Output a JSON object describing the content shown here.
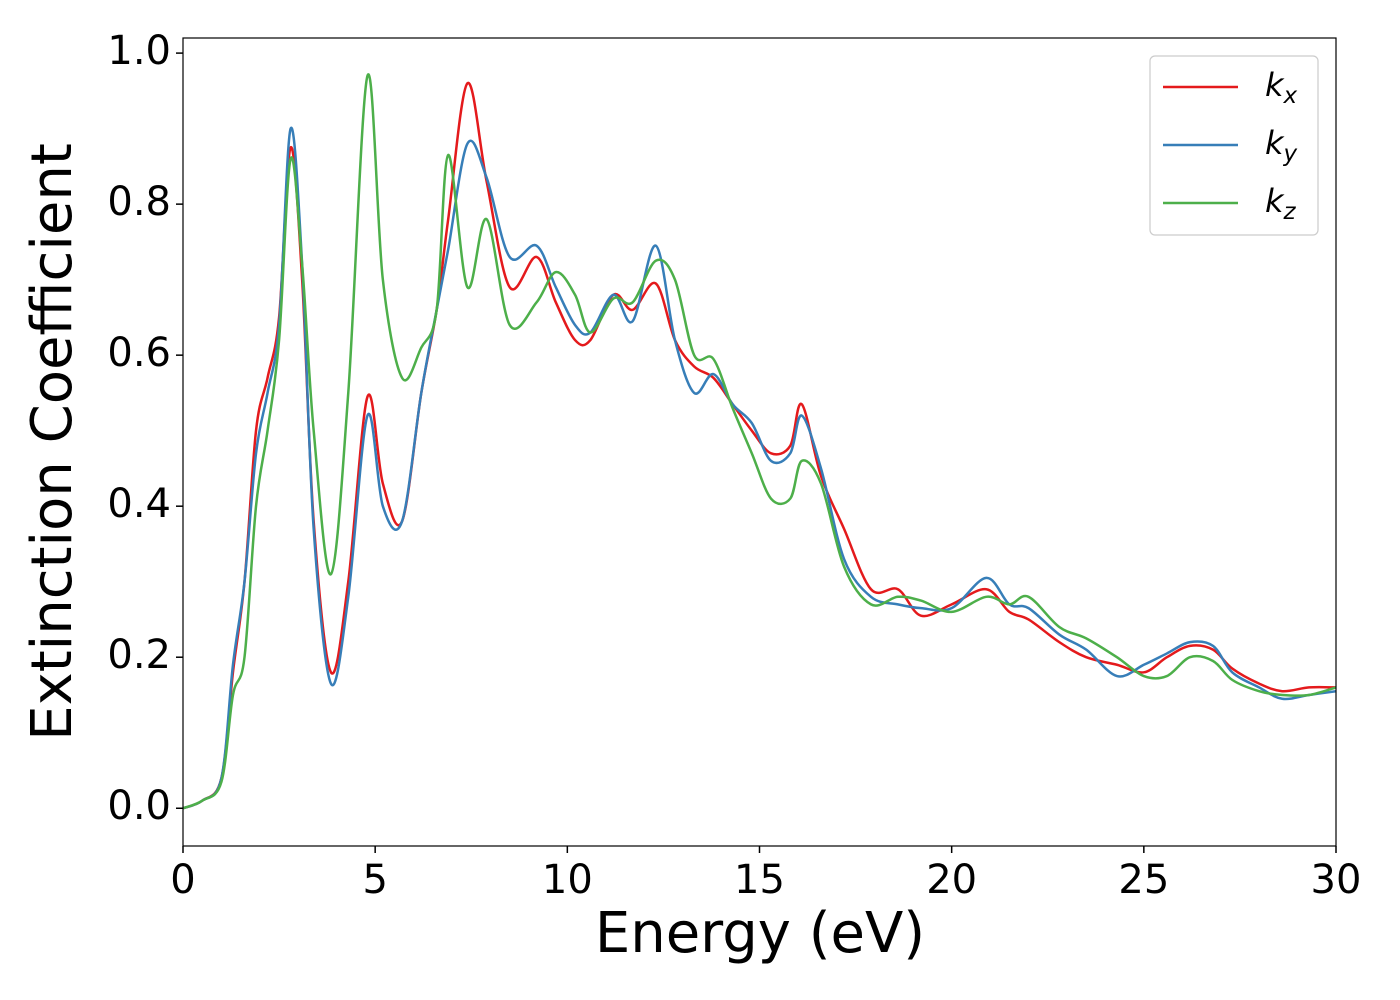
{
  "chart_data": {
    "type": "line",
    "xlabel": "Energy (eV)",
    "ylabel": "Extinction Coefficient",
    "x": [
      0,
      0.5,
      1,
      1.3,
      1.6,
      1.9,
      2.2,
      2.5,
      2.8,
      3.1,
      3.4,
      3.85,
      4.3,
      4.8,
      5.2,
      5.7,
      6.2,
      6.6,
      6.9,
      7.4,
      7.9,
      8.5,
      9.2,
      9.7,
      10.2,
      10.6,
      11.2,
      11.7,
      12.3,
      12.8,
      13.3,
      13.8,
      14.3,
      14.8,
      15.3,
      15.8,
      16.1,
      16.6,
      17.2,
      17.9,
      18.6,
      19.2,
      20,
      20.9,
      21.5,
      22,
      22.8,
      23.5,
      24.3,
      25,
      25.6,
      26.2,
      26.8,
      27.3,
      28,
      28.6,
      29.3,
      30
    ],
    "series": [
      {
        "name": "kx",
        "color": "#e41a1c",
        "values": [
          0,
          0.01,
          0.04,
          0.18,
          0.3,
          0.5,
          0.57,
          0.65,
          0.875,
          0.7,
          0.38,
          0.18,
          0.3,
          0.545,
          0.43,
          0.38,
          0.55,
          0.66,
          0.78,
          0.96,
          0.83,
          0.69,
          0.73,
          0.67,
          0.62,
          0.62,
          0.68,
          0.66,
          0.695,
          0.62,
          0.585,
          0.57,
          0.535,
          0.5,
          0.47,
          0.48,
          0.535,
          0.44,
          0.37,
          0.29,
          0.29,
          0.255,
          0.27,
          0.29,
          0.26,
          0.25,
          0.22,
          0.2,
          0.19,
          0.18,
          0.2,
          0.215,
          0.21,
          0.185,
          0.165,
          0.155,
          0.16,
          0.16
        ]
      },
      {
        "name": "ky",
        "color": "#377eb8",
        "values": [
          0,
          0.01,
          0.04,
          0.19,
          0.3,
          0.47,
          0.55,
          0.64,
          0.9,
          0.72,
          0.37,
          0.165,
          0.28,
          0.52,
          0.4,
          0.38,
          0.55,
          0.66,
          0.74,
          0.88,
          0.835,
          0.73,
          0.745,
          0.69,
          0.64,
          0.63,
          0.68,
          0.645,
          0.745,
          0.62,
          0.55,
          0.575,
          0.535,
          0.51,
          0.46,
          0.47,
          0.52,
          0.45,
          0.33,
          0.28,
          0.27,
          0.265,
          0.265,
          0.305,
          0.27,
          0.265,
          0.23,
          0.21,
          0.175,
          0.19,
          0.205,
          0.22,
          0.215,
          0.18,
          0.16,
          0.145,
          0.15,
          0.155
        ]
      },
      {
        "name": "kz",
        "color": "#4daf4a",
        "values": [
          0,
          0.01,
          0.035,
          0.15,
          0.2,
          0.4,
          0.5,
          0.62,
          0.86,
          0.72,
          0.5,
          0.31,
          0.55,
          0.97,
          0.7,
          0.57,
          0.61,
          0.66,
          0.865,
          0.69,
          0.78,
          0.64,
          0.67,
          0.71,
          0.68,
          0.63,
          0.675,
          0.67,
          0.725,
          0.7,
          0.6,
          0.595,
          0.53,
          0.47,
          0.41,
          0.41,
          0.46,
          0.43,
          0.32,
          0.27,
          0.28,
          0.275,
          0.26,
          0.28,
          0.27,
          0.28,
          0.24,
          0.225,
          0.2,
          0.175,
          0.175,
          0.2,
          0.195,
          0.17,
          0.155,
          0.15,
          0.15,
          0.16
        ]
      }
    ],
    "xlim": [
      0,
      30
    ],
    "xticks": [
      0,
      5,
      10,
      15,
      20,
      25,
      30
    ],
    "ylim": [
      -0.05,
      1.02
    ],
    "yticks": [
      {
        "value": 0,
        "label": "0.0"
      },
      0.2,
      0.4,
      0.6,
      0.8,
      {
        "value": 1,
        "label": "1.0"
      }
    ],
    "grid": false,
    "legend": "upper right"
  }
}
